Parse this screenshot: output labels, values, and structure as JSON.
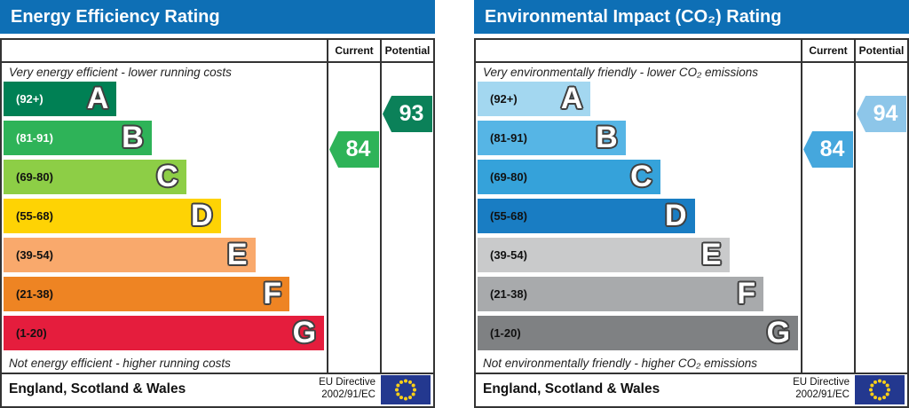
{
  "colors": {
    "header_bg": "#0e6fb5",
    "border": "#333333",
    "eu_flag_bg": "#23388f",
    "eu_star": "#fdd017"
  },
  "chart_data": [
    {
      "type": "bar",
      "title": "Energy Efficiency Rating",
      "columns": {
        "current": "Current",
        "potential": "Potential"
      },
      "top_caption": "Very energy efficient - lower running costs",
      "bottom_caption": "Not energy efficient - higher running costs",
      "bands": [
        {
          "letter": "A",
          "range": "(92+)",
          "color": "#008054",
          "width_pct": 35,
          "range_text_color": "#ffffff"
        },
        {
          "letter": "B",
          "range": "(81-91)",
          "color": "#2eb358",
          "width_pct": 45.8,
          "range_text_color": "#ffffff"
        },
        {
          "letter": "C",
          "range": "(69-80)",
          "color": "#8dce46",
          "width_pct": 56.5,
          "range_text_color": "#111111"
        },
        {
          "letter": "D",
          "range": "(55-68)",
          "color": "#fed304",
          "width_pct": 67.2,
          "range_text_color": "#111111"
        },
        {
          "letter": "E",
          "range": "(39-54)",
          "color": "#f9a96c",
          "width_pct": 77.9,
          "range_text_color": "#111111"
        },
        {
          "letter": "F",
          "range": "(21-38)",
          "color": "#ee8423",
          "width_pct": 88.5,
          "range_text_color": "#111111"
        },
        {
          "letter": "G",
          "range": "(1-20)",
          "color": "#e51d3d",
          "width_pct": 99.2,
          "range_text_color": "#111111"
        }
      ],
      "current": {
        "value": "84",
        "band": "B",
        "color": "#2eb358"
      },
      "potential": {
        "value": "93",
        "band": "A",
        "color": "#0b8159"
      },
      "footer": {
        "region": "England, Scotland & Wales",
        "directive_line1": "EU Directive",
        "directive_line2": "2002/91/EC"
      }
    },
    {
      "type": "bar",
      "title": "Environmental Impact (CO₂) Rating",
      "columns": {
        "current": "Current",
        "potential": "Potential"
      },
      "top_caption": "Very environmentally friendly - lower CO₂ emissions",
      "bottom_caption": "Not environmentally friendly - higher CO₂ emissions",
      "bands": [
        {
          "letter": "A",
          "range": "(92+)",
          "color": "#a3d7f0",
          "width_pct": 35,
          "range_text_color": "#111111"
        },
        {
          "letter": "B",
          "range": "(81-91)",
          "color": "#56b5e5",
          "width_pct": 45.8,
          "range_text_color": "#111111"
        },
        {
          "letter": "C",
          "range": "(69-80)",
          "color": "#35a2da",
          "width_pct": 56.5,
          "range_text_color": "#111111"
        },
        {
          "letter": "D",
          "range": "(55-68)",
          "color": "#197dc3",
          "width_pct": 67.2,
          "range_text_color": "#111111"
        },
        {
          "letter": "E",
          "range": "(39-54)",
          "color": "#c9cacb",
          "width_pct": 77.9,
          "range_text_color": "#111111"
        },
        {
          "letter": "F",
          "range": "(21-38)",
          "color": "#a8aaac",
          "width_pct": 88.5,
          "range_text_color": "#111111"
        },
        {
          "letter": "G",
          "range": "(1-20)",
          "color": "#7f8183",
          "width_pct": 99.2,
          "range_text_color": "#111111"
        }
      ],
      "current": {
        "value": "84",
        "band": "B",
        "color": "#45a7dd"
      },
      "potential": {
        "value": "94",
        "band": "A",
        "color": "#8dc6e9"
      },
      "footer": {
        "region": "England, Scotland & Wales",
        "directive_line1": "EU Directive",
        "directive_line2": "2002/91/EC"
      }
    }
  ]
}
